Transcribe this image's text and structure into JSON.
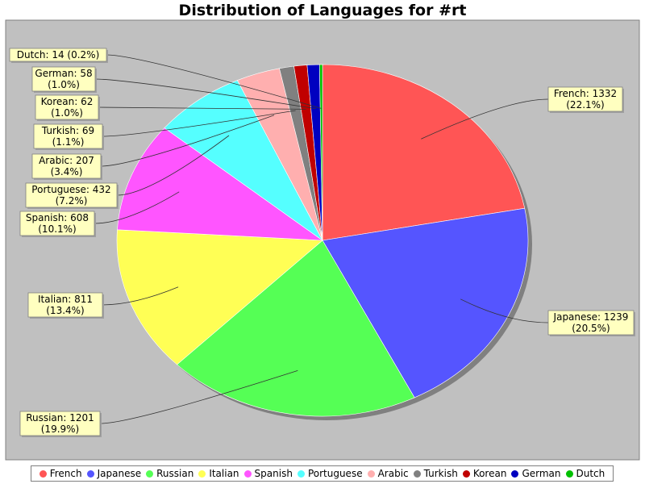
{
  "chart_data": {
    "type": "pie",
    "title": "Distribution of Languages for #rt",
    "slices": [
      {
        "name": "French",
        "value": 1332,
        "label_value": "1332",
        "percent": "22.1%",
        "color": "#ff5555"
      },
      {
        "name": "Japanese",
        "value": 1239,
        "label_value": "1239",
        "percent": "20.5%",
        "color": "#5555ff"
      },
      {
        "name": "Russian",
        "value": 1201,
        "label_value": "1201",
        "percent": "19.9%",
        "color": "#55ff55"
      },
      {
        "name": "Italian",
        "value": 811,
        "label_value": "811",
        "percent": "13.4%",
        "color": "#ffff55"
      },
      {
        "name": "Spanish",
        "value": 608,
        "label_value": "608",
        "percent": "10.1%",
        "color": "#ff55ff"
      },
      {
        "name": "Portuguese",
        "value": 432,
        "label_value": "432",
        "percent": "7.2%",
        "color": "#55ffff"
      },
      {
        "name": "Arabic",
        "value": 207,
        "label_value": "207",
        "percent": "3.4%",
        "color": "#ffafaf"
      },
      {
        "name": "Turkish",
        "value": 69,
        "label_value": "69",
        "percent": "1.1%",
        "color": "#808080"
      },
      {
        "name": "Korean",
        "value": 62,
        "label_value": "62",
        "percent": "1.0%",
        "color": "#c00000"
      },
      {
        "name": "German",
        "value": 58,
        "label_value": "58",
        "percent": "1.0%",
        "color": "#0000c0"
      },
      {
        "name": "Dutch",
        "value": 14,
        "label_value": "14",
        "percent": "0.2%",
        "color": "#00c000"
      }
    ],
    "legend_position": "bottom",
    "plot_background": "#c0c0c0"
  }
}
